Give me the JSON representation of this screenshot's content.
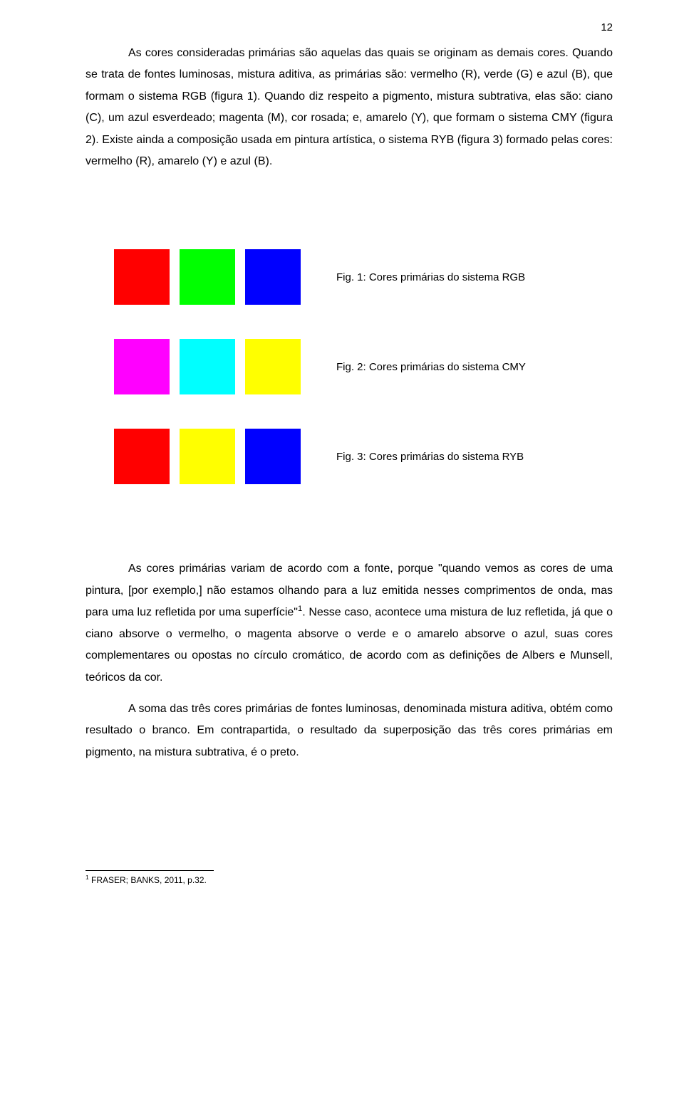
{
  "page_number": "12",
  "paragraphs": {
    "p1": "As cores consideradas primárias são aquelas das quais se originam as demais cores. Quando se trata de fontes luminosas, mistura aditiva, as primárias são: vermelho (R), verde (G) e azul (B), que formam o sistema RGB (figura 1). Quando diz respeito a pigmento, mistura subtrativa, elas são: ciano (C), um azul esverdeado; magenta (M), cor rosada; e, amarelo (Y), que formam o sistema CMY (figura 2). Existe ainda a composição usada em pintura artística, o sistema RYB (figura 3) formado pelas cores: vermelho (R), amarelo (Y) e azul (B).",
    "p2_a": "As cores primárias variam de acordo com a fonte, porque \"quando vemos as cores de uma pintura, [por exemplo,] não estamos olhando para a luz emitida nesses comprimentos de onda, mas para uma luz refletida por uma superfície\"",
    "p2_b": ". Nesse caso, acontece uma mistura de luz refletida, já que o ciano absorve o vermelho, o magenta absorve o verde e o amarelo absorve o azul, suas cores complementares ou opostas no círculo cromático, de acordo com as definições de Albers e Munsell, teóricos da cor.",
    "p3": "A soma das três cores primárias de fontes luminosas, denominada mistura aditiva, obtém como resultado o branco. Em contrapartida, o resultado da superposição das três cores primárias em pigmento, na mistura subtrativa, é o preto."
  },
  "figures": {
    "fig1": {
      "caption": "Fig. 1: Cores primárias do sistema RGB",
      "colors": [
        "#ff0000",
        "#00ff00",
        "#0000ff"
      ]
    },
    "fig2": {
      "caption": "Fig. 2: Cores primárias do sistema CMY",
      "colors": [
        "#ff00ff",
        "#00ffff",
        "#ffff00"
      ]
    },
    "fig3": {
      "caption": "Fig. 3: Cores primárias do sistema RYB",
      "colors": [
        "#ff0000",
        "#ffff00",
        "#0000ff"
      ]
    }
  },
  "footnote": {
    "marker": "1",
    "text": " FRASER; BANKS, 2011, p.32."
  }
}
